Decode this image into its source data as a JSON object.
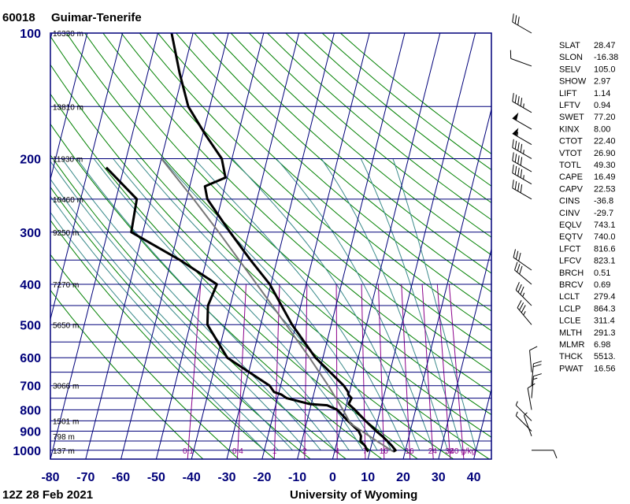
{
  "header": {
    "station_id": "60018",
    "station_name": "Guimar-Tenerife"
  },
  "footer": {
    "time_label": "12Z 28 Feb 2021",
    "source_label": "University of Wyoming"
  },
  "colors": {
    "grid": "#00007a",
    "dry_adiabat": "#008000",
    "moist_adiabat": "#3a8a8a",
    "mixing_ratio": "#8b008b",
    "profile": "#000000",
    "parcel": "#777777"
  },
  "chart_data": {
    "type": "line",
    "subtype": "skew-T log-p diagram",
    "title": "60018  Guimar-Tenerife",
    "xlabel": "",
    "ylabel": "",
    "xlim": [
      -80,
      45
    ],
    "ylim": [
      1050,
      100
    ],
    "y_scale": "log",
    "grid": true,
    "pressure_levels": [
      100,
      200,
      300,
      400,
      500,
      600,
      700,
      800,
      900,
      1000
    ],
    "temperature_ticks": [
      "-80",
      "-70",
      "-60",
      "-50",
      "-40",
      "-30",
      "-20",
      "-10",
      "0",
      "10",
      "20",
      "30",
      "40"
    ],
    "height_labels": [
      {
        "p": 1000,
        "text": "137 m"
      },
      {
        "p": 925,
        "text": "798 m"
      },
      {
        "p": 850,
        "text": "1501 m"
      },
      {
        "p": 700,
        "text": "3066 m"
      },
      {
        "p": 500,
        "text": "5650 m"
      },
      {
        "p": 400,
        "text": "7270 m"
      },
      {
        "p": 300,
        "text": "9250 m"
      },
      {
        "p": 250,
        "text": "10460 m"
      },
      {
        "p": 200,
        "text": "11930 m"
      },
      {
        "p": 150,
        "text": "13810 m"
      },
      {
        "p": 100,
        "text": "16330 m"
      }
    ],
    "mixing_ratio_labels": [
      "0.1",
      "0.4",
      "1",
      "2",
      "4",
      "7",
      "10",
      "16",
      "24",
      "32",
      "40 g/kg"
    ],
    "mixing_ratios": [
      0.1,
      0.4,
      1,
      2,
      4,
      7,
      10,
      16,
      24,
      32,
      40
    ],
    "series": [
      {
        "name": "Temperature",
        "points": [
          [
            1007,
            16.6
          ],
          [
            1000,
            17.2
          ],
          [
            975,
            15.8
          ],
          [
            950,
            14.2
          ],
          [
            925,
            12.4
          ],
          [
            900,
            10.4
          ],
          [
            850,
            6.6
          ],
          [
            800,
            2.8
          ],
          [
            775,
            0.6
          ],
          [
            750,
            1.0
          ],
          [
            735,
            -0.2
          ],
          [
            725,
            -0.4
          ],
          [
            700,
            -2.1
          ],
          [
            600,
            -12.1
          ],
          [
            500,
            -21.1
          ],
          [
            400,
            -30.3
          ],
          [
            350,
            -37.5
          ],
          [
            300,
            -45.3
          ],
          [
            250,
            -54.1
          ],
          [
            233,
            -55.7
          ],
          [
            222,
            -50.5
          ],
          [
            200,
            -52.9
          ],
          [
            175,
            -59.3
          ],
          [
            150,
            -66.1
          ],
          [
            125,
            -70.9
          ],
          [
            100,
            -76.1
          ]
        ]
      },
      {
        "name": "Dewpoint",
        "points": [
          [
            1007,
            9.6
          ],
          [
            1000,
            9.2
          ],
          [
            975,
            8.2
          ],
          [
            950,
            6.6
          ],
          [
            925,
            6.4
          ],
          [
            900,
            5.4
          ],
          [
            850,
            1.6
          ],
          [
            800,
            -2.2
          ],
          [
            780,
            -5.4
          ],
          [
            775,
            -10.4
          ],
          [
            750,
            -17.4
          ],
          [
            735,
            -19.2
          ],
          [
            725,
            -21.4
          ],
          [
            700,
            -23.1
          ],
          [
            600,
            -37.1
          ],
          [
            500,
            -45.1
          ],
          [
            450,
            -46.3
          ],
          [
            400,
            -45.3
          ],
          [
            350,
            -57.5
          ],
          [
            300,
            -73.3
          ],
          [
            250,
            -74.1
          ],
          [
            210,
            -85.0
          ]
        ]
      },
      {
        "name": "Parcel",
        "points": [
          [
            1007,
            16.6
          ],
          [
            950,
            11.2
          ],
          [
            864,
            2.6
          ],
          [
            800,
            -0.6
          ],
          [
            700,
            -6.5
          ],
          [
            600,
            -13.8
          ],
          [
            500,
            -22.8
          ],
          [
            400,
            -34.0
          ],
          [
            300,
            -48.5
          ],
          [
            250,
            -58.0
          ],
          [
            200,
            -70.0
          ]
        ]
      }
    ],
    "wind_barbs": [
      {
        "p": 1000,
        "dir": 90,
        "spd": 10
      },
      {
        "p": 925,
        "dir": 340,
        "spd": 5
      },
      {
        "p": 900,
        "dir": 315,
        "spd": 5
      },
      {
        "p": 850,
        "dir": 315,
        "spd": 5
      },
      {
        "p": 800,
        "dir": 350,
        "spd": 10
      },
      {
        "p": 750,
        "dir": 5,
        "spd": 15
      },
      {
        "p": 700,
        "dir": 5,
        "spd": 20
      },
      {
        "p": 650,
        "dir": 355,
        "spd": 10
      },
      {
        "p": 500,
        "dir": 320,
        "spd": 35
      },
      {
        "p": 450,
        "dir": 315,
        "spd": 35
      },
      {
        "p": 400,
        "dir": 310,
        "spd": 30
      },
      {
        "p": 370,
        "dir": 305,
        "spd": 30
      },
      {
        "p": 250,
        "dir": 300,
        "spd": 40
      },
      {
        "p": 230,
        "dir": 300,
        "spd": 45
      },
      {
        "p": 215,
        "dir": 300,
        "spd": 40
      },
      {
        "p": 200,
        "dir": 300,
        "spd": 45
      },
      {
        "p": 185,
        "dir": 300,
        "spd": 55
      },
      {
        "p": 170,
        "dir": 300,
        "spd": 50
      },
      {
        "p": 155,
        "dir": 300,
        "spd": 45
      },
      {
        "p": 120,
        "dir": 290,
        "spd": 10
      },
      {
        "p": 100,
        "dir": 300,
        "spd": 30
      }
    ],
    "indices": [
      {
        "label": "SLAT",
        "value": "28.47"
      },
      {
        "label": "SLON",
        "value": "-16.38"
      },
      {
        "label": "SELV",
        "value": "105.0"
      },
      {
        "label": "SHOW",
        "value": "2.97"
      },
      {
        "label": "LIFT",
        "value": "1.14"
      },
      {
        "label": "LFTV",
        "value": "0.94"
      },
      {
        "label": "SWET",
        "value": "77.20"
      },
      {
        "label": "KINX",
        "value": "8.00"
      },
      {
        "label": "CTOT",
        "value": "22.40"
      },
      {
        "label": "VTOT",
        "value": "26.90"
      },
      {
        "label": "TOTL",
        "value": "49.30"
      },
      {
        "label": "CAPE",
        "value": "16.49"
      },
      {
        "label": "CAPV",
        "value": "22.53"
      },
      {
        "label": "CINS",
        "value": "-36.8"
      },
      {
        "label": "CINV",
        "value": "-29.7"
      },
      {
        "label": "EQLV",
        "value": "743.1"
      },
      {
        "label": "EQTV",
        "value": "740.0"
      },
      {
        "label": "LFCT",
        "value": "816.6"
      },
      {
        "label": "LFCV",
        "value": "823.1"
      },
      {
        "label": "BRCH",
        "value": "0.51"
      },
      {
        "label": "BRCV",
        "value": "0.69"
      },
      {
        "label": "LCLT",
        "value": "279.4"
      },
      {
        "label": "LCLP",
        "value": "864.3"
      },
      {
        "label": "LCLE",
        "value": "311.4"
      },
      {
        "label": "MLTH",
        "value": "291.3"
      },
      {
        "label": "MLMR",
        "value": "6.98"
      },
      {
        "label": "THCK",
        "value": "5513."
      },
      {
        "label": "PWAT",
        "value": "16.56"
      }
    ]
  }
}
